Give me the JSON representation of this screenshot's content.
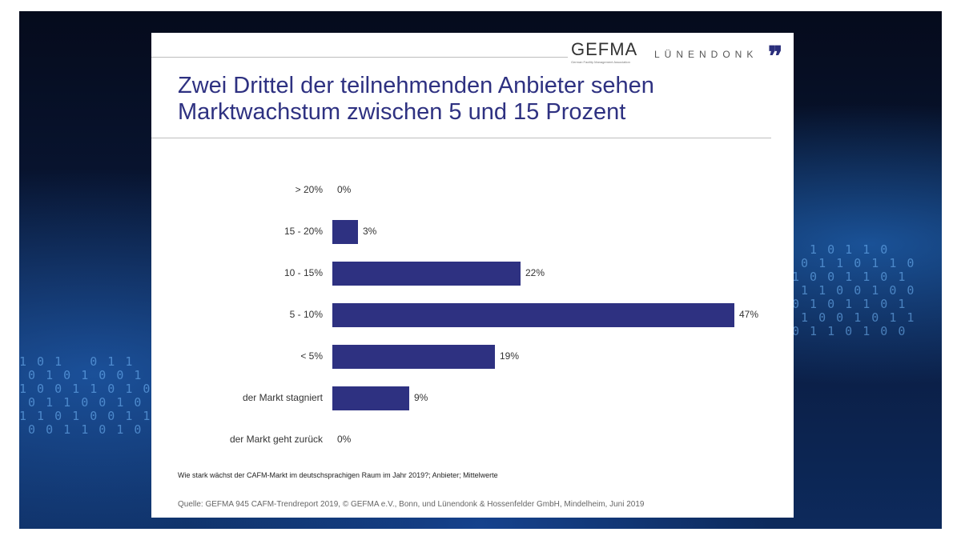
{
  "header": {
    "logo_gefma": "GEFMA",
    "logo_gefma_sub": "German Facility Management Association",
    "logo_lunendonk": "LÜNENDONK",
    "logo_quote": "❞"
  },
  "title_line1": "Zwei Drittel der teilnehmenden Anbieter sehen",
  "title_line2": "Marktwachstum zwischen 5 und 15 Prozent",
  "chart_data": {
    "type": "bar",
    "orientation": "horizontal",
    "categories": [
      "> 20%",
      "15 - 20%",
      "10 - 15%",
      "5 - 10%",
      "< 5%",
      "der Markt stagniert",
      "der Markt geht zurück"
    ],
    "values": [
      0,
      3,
      22,
      47,
      19,
      9,
      0
    ],
    "value_labels": [
      "0%",
      "3%",
      "22%",
      "47%",
      "19%",
      "9%",
      "0%"
    ],
    "bar_color": "#2e3181",
    "xlim": [
      0,
      47
    ]
  },
  "question": "Wie stark wächst der CAFM-Markt im deutschsprachigen Raum im Jahr 2019?; Anbieter; Mittelwerte",
  "source": "Quelle: GEFMA 945 CAFM-Trendreport 2019, © GEFMA e.V., Bonn, und Lünendonk & Hossenfelder GmbH, Mindelheim, Juni 2019"
}
